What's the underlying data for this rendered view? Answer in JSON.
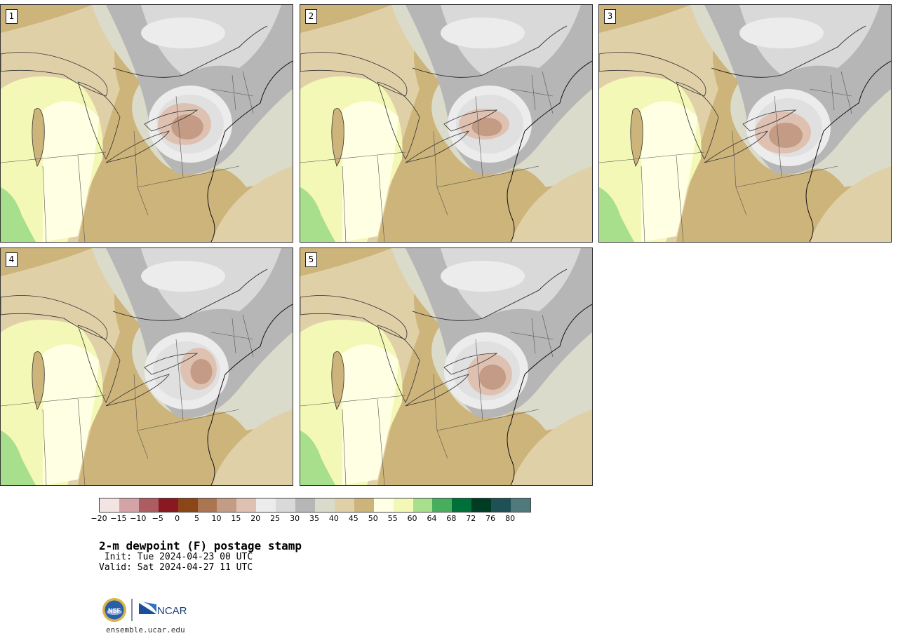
{
  "panels": [
    {
      "label": "1"
    },
    {
      "label": "2"
    },
    {
      "label": "3"
    },
    {
      "label": "4"
    },
    {
      "label": "5"
    }
  ],
  "colorbar": {
    "levels": [
      "−20",
      "−15",
      "−10",
      "−5",
      "0",
      "5",
      "10",
      "15",
      "20",
      "25",
      "30",
      "35",
      "40",
      "45",
      "50",
      "55",
      "60",
      "64",
      "68",
      "72",
      "76",
      "80"
    ],
    "colors": [
      "#f3e4e4",
      "#d4a3a6",
      "#ad5d62",
      "#8a1821",
      "#8b4516",
      "#ac7552",
      "#c49b84",
      "#dfc1b2",
      "#ececec",
      "#d9d9d9",
      "#b6b6b6",
      "#dbdbcb",
      "#e0d0a8",
      "#cdb47a",
      "#ffffe3",
      "#f4f8b7",
      "#a8df8c",
      "#48ae5e",
      "#00703a",
      "#003c24",
      "#1d5155",
      "#4f7a7d"
    ]
  },
  "title": {
    "main": "2-m dewpoint (F) postage stamp",
    "init": " Init: Tue 2024-04-23 00 UTC",
    "valid": "Valid: Sat 2024-04-27 11 UTC"
  },
  "footer": {
    "nsf": "NSF",
    "ncar": "NCAR",
    "website": "ensemble.ucar.edu"
  }
}
